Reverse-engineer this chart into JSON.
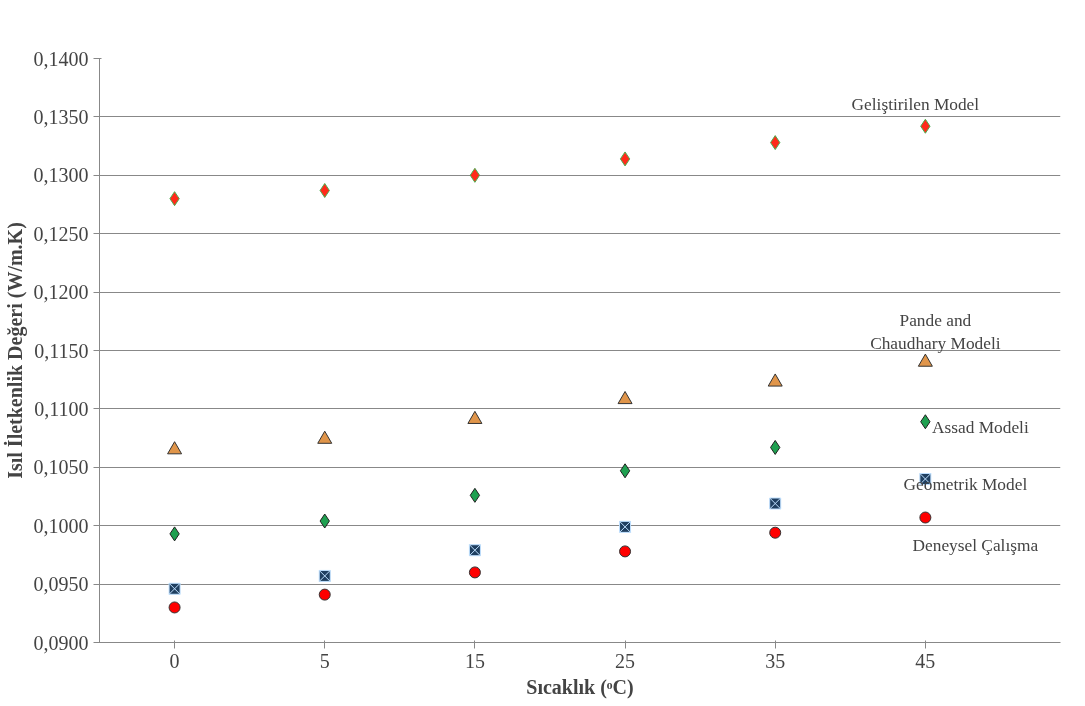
{
  "chart_data": {
    "type": "scatter",
    "xlabel": "Sıcaklık (ᵒC)",
    "ylabel": "Isıl İletkenlik Değeri (W/m.K)",
    "categories": [
      "0",
      "5",
      "15",
      "25",
      "35",
      "45"
    ],
    "ylim": [
      0.09,
      0.14
    ],
    "yticks": [
      {
        "value": 0.09,
        "label": "0,0900"
      },
      {
        "value": 0.095,
        "label": "0,0950"
      },
      {
        "value": 0.1,
        "label": "0,1000"
      },
      {
        "value": 0.105,
        "label": "0,1050"
      },
      {
        "value": 0.11,
        "label": "0,1100"
      },
      {
        "value": 0.115,
        "label": "0,1150"
      },
      {
        "value": 0.12,
        "label": "0,1200"
      },
      {
        "value": 0.125,
        "label": "0,1250"
      },
      {
        "value": 0.13,
        "label": "0,1300"
      },
      {
        "value": 0.135,
        "label": "0,1350"
      },
      {
        "value": 0.14,
        "label": "0,1400"
      }
    ],
    "grid": "y",
    "legend": false,
    "series": [
      {
        "name": "Geliştirilen Model",
        "color": "#ff2a1a",
        "marker": "diamond",
        "values": [
          0.128,
          0.1287,
          0.13,
          0.1314,
          0.1328,
          0.1342
        ]
      },
      {
        "name": "Pande and\nChaudhary Modeli",
        "color": "#e0954a",
        "marker": "triangle",
        "values": [
          0.1065,
          0.1074,
          0.1091,
          0.1108,
          0.1123,
          0.114
        ]
      },
      {
        "name": "Assad Modeli",
        "color": "#1fa050",
        "marker": "diamond",
        "values": [
          0.0993,
          0.1004,
          0.1026,
          0.1047,
          0.1067,
          0.1089
        ]
      },
      {
        "name": "Geometrik Model",
        "color": "#1f3f60",
        "marker": "cross",
        "values": [
          0.0946,
          0.0957,
          0.0979,
          0.0999,
          0.1019,
          0.104
        ]
      },
      {
        "name": "Deneysel Çalışma",
        "color": "#ff0000",
        "marker": "circle",
        "values": [
          0.093,
          0.0941,
          0.096,
          0.0978,
          0.0994,
          0.1007
        ]
      }
    ]
  }
}
